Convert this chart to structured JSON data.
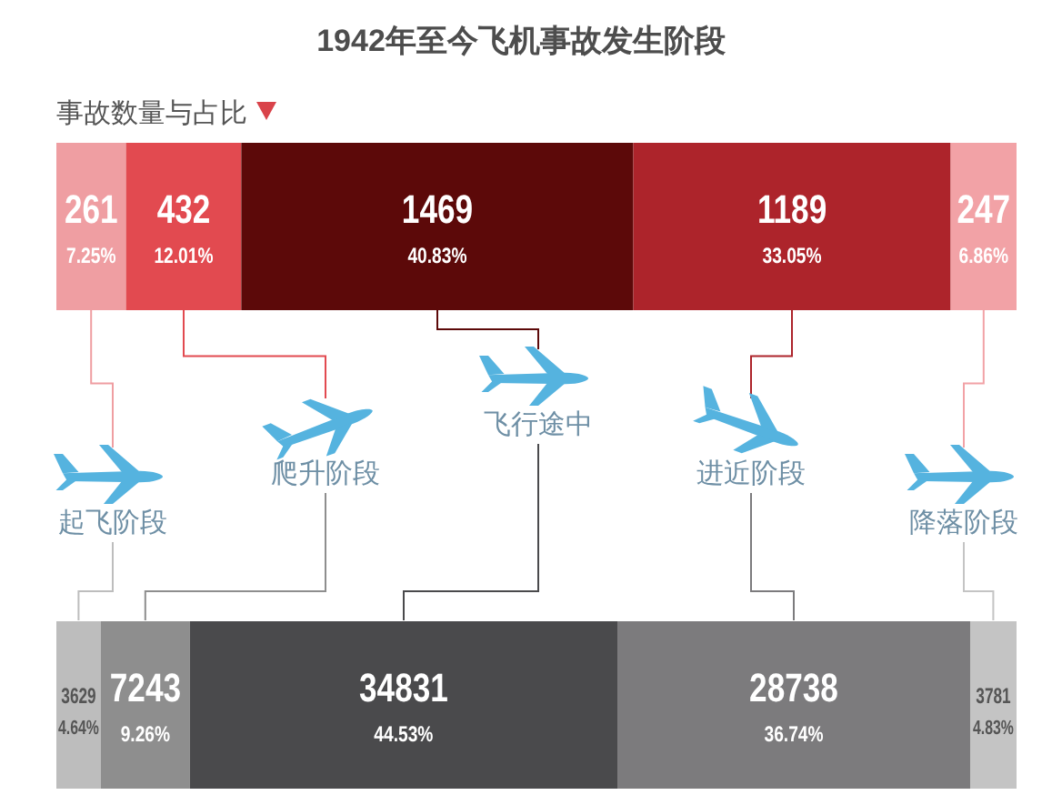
{
  "chart_data": {
    "type": "bar",
    "orientation": "horizontal",
    "stacked": true,
    "title": "1942年至今飞机事故发生阶段",
    "categories": [
      "事故数量与占比",
      null
    ],
    "tick_labels": "y",
    "series": [
      {
        "name": "起飞阶段",
        "colors": [
          "#ef9ea2",
          "#bdbdbd"
        ],
        "values": [
          7.25,
          4.64
        ],
        "value_labels": [
          "261\n7.25%",
          "3629\n4.64%"
        ]
      },
      {
        "name": "爬升阶段",
        "colors": [
          "#e24a50",
          "#8e8e8e"
        ],
        "values": [
          12.01,
          9.26
        ],
        "value_labels": [
          "432\n12.01%",
          "7243\n9.26%"
        ]
      },
      {
        "name": "飞行途中",
        "colors": [
          "#5c0909",
          "#4a4a4c"
        ],
        "values": [
          40.83,
          44.53
        ],
        "value_labels": [
          "1469\n40.83%",
          "34831\n44.53%"
        ]
      },
      {
        "name": "进近阶段",
        "colors": [
          "#ad242b",
          "#7c7b7d"
        ],
        "values": [
          33.05,
          36.74
        ],
        "value_labels": [
          "1189\n33.05%",
          "28738\n36.74%"
        ]
      },
      {
        "name": "降落阶段",
        "colors": [
          "#f2a2a6",
          "#c4c4c4"
        ],
        "values": [
          6.86,
          4.83
        ],
        "value_labels": [
          "247\n6.86%",
          "3781\n4.83%"
        ]
      }
    ]
  }
}
